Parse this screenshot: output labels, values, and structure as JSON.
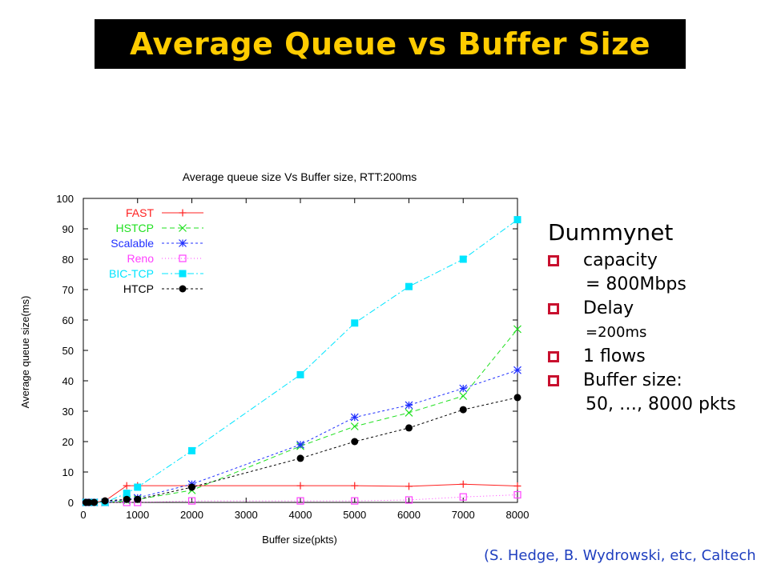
{
  "slide_title": "Average Queue vs Buffer Size",
  "bullets": {
    "heading": "Dummynet",
    "items": [
      {
        "line1": "capacity",
        "line2": "= 800Mbps",
        "small": false
      },
      {
        "line1": "Delay",
        "line2": "=200ms",
        "small": true
      },
      {
        "line1": "1 flows",
        "line2": "",
        "small": false
      },
      {
        "line1": "Buffer size:",
        "line2": "50, …, 8000 pkts",
        "small": false
      }
    ]
  },
  "credit": "(S. Hedge, B. Wydrowski, etc, Caltech",
  "colors": {
    "title_bg": "#000000",
    "title_text": "#ffcc00",
    "bullet_box": "#c8102e",
    "credit": "#1f3fbf"
  },
  "chart_data": {
    "type": "line",
    "title": "Average queue size Vs Buffer size, RTT:200ms",
    "xlabel": "Buffer size(pkts)",
    "ylabel": "Average queue size(ms)",
    "xlim": [
      0,
      8000
    ],
    "ylim": [
      0,
      100
    ],
    "xticks": [
      0,
      1000,
      2000,
      3000,
      4000,
      5000,
      6000,
      7000,
      8000
    ],
    "yticks": [
      0,
      10,
      20,
      30,
      40,
      50,
      60,
      70,
      80,
      90,
      100
    ],
    "grid": false,
    "legend_position": "top-left",
    "series": [
      {
        "name": "FAST",
        "color": "#ff2020",
        "marker": "plus",
        "dash": "",
        "points": [
          [
            50,
            0
          ],
          [
            100,
            0
          ],
          [
            200,
            0
          ],
          [
            400,
            0.5
          ],
          [
            800,
            5.5
          ],
          [
            1000,
            5.5
          ],
          [
            2000,
            5.5
          ],
          [
            4000,
            5.5
          ],
          [
            5000,
            5.5
          ],
          [
            6000,
            5.3
          ],
          [
            7000,
            6
          ],
          [
            8000,
            5.4
          ]
        ]
      },
      {
        "name": "HSTCP",
        "color": "#20e020",
        "marker": "x",
        "dash": "6,4",
        "points": [
          [
            50,
            0
          ],
          [
            100,
            0
          ],
          [
            200,
            0
          ],
          [
            400,
            0
          ],
          [
            800,
            0.5
          ],
          [
            1000,
            1
          ],
          [
            2000,
            4
          ],
          [
            4000,
            18.5
          ],
          [
            5000,
            25
          ],
          [
            6000,
            29.5
          ],
          [
            7000,
            35
          ],
          [
            8000,
            57
          ]
        ]
      },
      {
        "name": "Scalable",
        "color": "#2030ff",
        "marker": "star",
        "dash": "3,3",
        "points": [
          [
            50,
            0
          ],
          [
            100,
            0
          ],
          [
            200,
            0
          ],
          [
            400,
            0
          ],
          [
            800,
            1
          ],
          [
            1000,
            1.5
          ],
          [
            2000,
            6
          ],
          [
            4000,
            19
          ],
          [
            5000,
            28
          ],
          [
            6000,
            32
          ],
          [
            7000,
            37.5
          ],
          [
            8000,
            43.5
          ]
        ]
      },
      {
        "name": "Reno",
        "color": "#ff40ff",
        "marker": "square-open",
        "dash": "1,3",
        "points": [
          [
            50,
            0
          ],
          [
            100,
            0
          ],
          [
            200,
            0
          ],
          [
            400,
            0
          ],
          [
            800,
            0
          ],
          [
            1000,
            0
          ],
          [
            2000,
            0.5
          ],
          [
            4000,
            0.5
          ],
          [
            5000,
            0.5
          ],
          [
            6000,
            0.8
          ],
          [
            7000,
            1.8
          ],
          [
            8000,
            2.5
          ]
        ]
      },
      {
        "name": "BIC-TCP",
        "color": "#00e5ff",
        "marker": "square-filled",
        "dash": "8,3,2,3",
        "points": [
          [
            50,
            0
          ],
          [
            100,
            0
          ],
          [
            200,
            0
          ],
          [
            400,
            0
          ],
          [
            800,
            3
          ],
          [
            1000,
            5
          ],
          [
            2000,
            17
          ],
          [
            4000,
            42
          ],
          [
            5000,
            59
          ],
          [
            6000,
            71
          ],
          [
            7000,
            80
          ],
          [
            8000,
            93
          ]
        ]
      },
      {
        "name": "HTCP",
        "color": "#000000",
        "marker": "circle",
        "dash": "3,3",
        "points": [
          [
            50,
            0
          ],
          [
            100,
            0
          ],
          [
            200,
            0
          ],
          [
            400,
            0.5
          ],
          [
            800,
            1
          ],
          [
            1000,
            1
          ],
          [
            2000,
            5
          ],
          [
            4000,
            14.5
          ],
          [
            5000,
            20
          ],
          [
            6000,
            24.5
          ],
          [
            7000,
            30.5
          ],
          [
            8000,
            34.5
          ]
        ]
      }
    ]
  }
}
